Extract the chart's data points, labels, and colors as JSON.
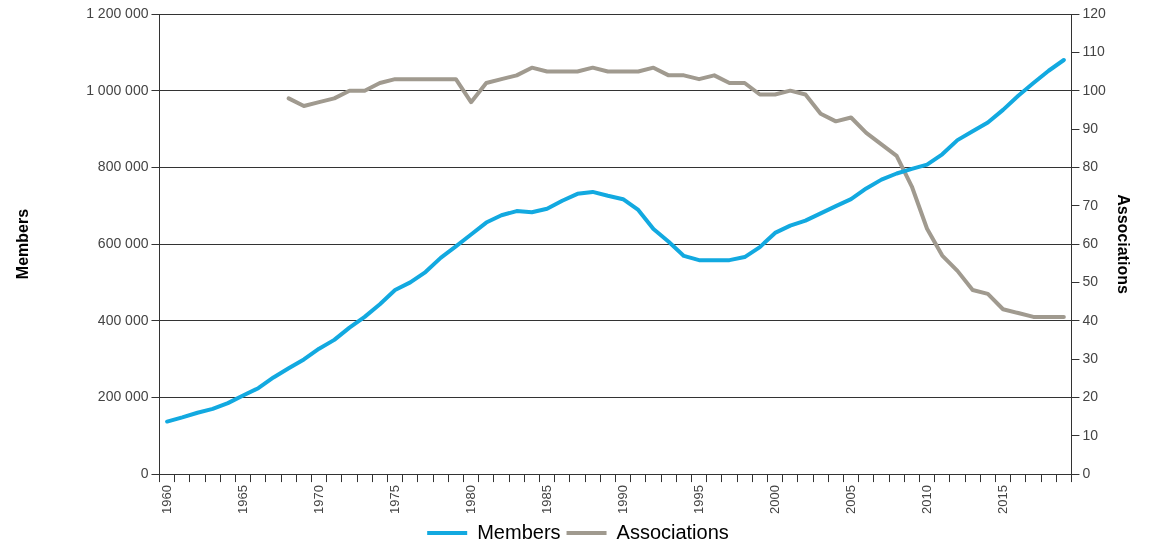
{
  "chart_data": {
    "type": "line",
    "categories": [
      "1960",
      null,
      null,
      null,
      null,
      "1965",
      null,
      null,
      null,
      null,
      "1970",
      null,
      null,
      null,
      null,
      "1975",
      null,
      null,
      null,
      null,
      "1980",
      null,
      null,
      null,
      null,
      "1985",
      null,
      null,
      null,
      null,
      "1990",
      null,
      null,
      null,
      null,
      "1995",
      null,
      null,
      null,
      null,
      "2000",
      null,
      null,
      null,
      null,
      "2005",
      null,
      null,
      null,
      null,
      "2010",
      null,
      null,
      null,
      null,
      "2015",
      null,
      null,
      null,
      null
    ],
    "series": [
      {
        "name": "Members",
        "color": "#12a9e0",
        "values": [
          137000,
          148000,
          160000,
          170000,
          185000,
          205000,
          224000,
          252000,
          276000,
          299000,
          327000,
          350000,
          382000,
          410000,
          443000,
          480000,
          500000,
          527000,
          564000,
          594000,
          625000,
          656000,
          675000,
          686000,
          683000,
          692000,
          713000,
          731000,
          736000,
          726000,
          717000,
          689000,
          639000,
          606000,
          569000,
          558000,
          558000,
          558000,
          566000,
          592000,
          629000,
          648000,
          661000,
          680000,
          699000,
          717000,
          745000,
          768000,
          784000,
          796000,
          807000,
          834000,
          871000,
          894000,
          917000,
          950000,
          987000,
          1020000,
          1052000,
          1080000
        ]
      },
      {
        "name": "Associations",
        "color": "#a09a8f",
        "axis": "y2",
        "values": [
          null,
          null,
          null,
          null,
          null,
          null,
          null,
          null,
          98,
          96,
          97,
          98,
          100,
          100,
          102,
          103,
          103,
          103,
          103,
          103,
          97,
          102,
          103,
          104,
          106,
          105,
          105,
          105,
          106,
          105,
          105,
          105,
          106,
          104,
          104,
          103,
          104,
          102,
          102,
          99,
          99,
          100,
          99,
          94,
          92,
          93,
          89,
          86,
          83,
          75,
          64,
          57,
          53,
          48,
          47,
          43,
          42,
          41,
          41,
          41
        ]
      }
    ],
    "ylabel": "Members",
    "y2label": "Associations",
    "ylim": [
      0,
      1200000
    ],
    "yticks": [
      0,
      {
        "value": 200000,
        "label": "200 000"
      },
      {
        "value": 400000,
        "label": "400 000"
      },
      {
        "value": 600000,
        "label": "600 000"
      },
      {
        "value": 800000,
        "label": "800 000"
      },
      {
        "value": 1000000,
        "label": "1 000 000"
      },
      {
        "value": 1200000,
        "label": "1 200 000"
      }
    ],
    "y2lim": [
      0,
      120
    ],
    "y2ticks": [
      0,
      10,
      20,
      30,
      40,
      50,
      60,
      70,
      80,
      90,
      100,
      110,
      120
    ],
    "grid": "y",
    "legend": "bottom",
    "marker": "none",
    "line_style": "solid"
  }
}
